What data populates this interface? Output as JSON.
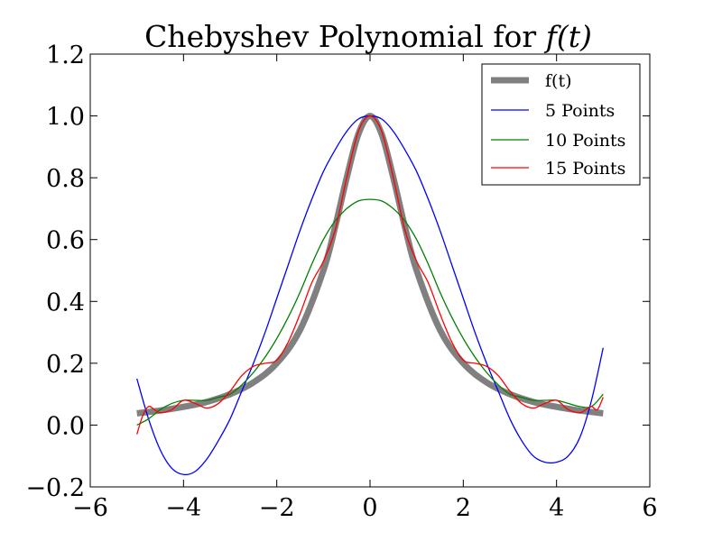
{
  "chart_data": {
    "type": "line",
    "title_main": "Chebyshev Polynomial for ",
    "title_math": "f(t)",
    "xlabel": "",
    "ylabel": "",
    "xlim": [
      -6,
      6
    ],
    "ylim": [
      -0.2,
      1.2
    ],
    "xticks": [
      -6,
      -4,
      -2,
      0,
      2,
      4,
      6
    ],
    "yticks": [
      -0.2,
      0.0,
      0.2,
      0.4,
      0.6,
      0.8,
      1.0,
      1.2
    ],
    "xtick_labels": [
      "−6",
      "−4",
      "−2",
      "0",
      "2",
      "4",
      "6"
    ],
    "ytick_labels": [
      "−0.2",
      "0.0",
      "0.2",
      "0.4",
      "0.6",
      "0.8",
      "1.0",
      "1.2"
    ],
    "grid": false,
    "legend_position": "top-right",
    "series": [
      {
        "name": "f(t)",
        "color": "#808080",
        "x": [
          -5,
          -4.5,
          -4,
          -3.5,
          -3,
          -2.5,
          -2,
          -1.5,
          -1,
          -0.75,
          -0.5,
          -0.25,
          0,
          0.25,
          0.5,
          0.75,
          1,
          1.5,
          2,
          2.5,
          3,
          3.5,
          4,
          4.5,
          5
        ],
        "y": [
          0.038,
          0.047,
          0.059,
          0.075,
          0.1,
          0.138,
          0.2,
          0.308,
          0.5,
          0.64,
          0.8,
          0.941,
          1.0,
          0.941,
          0.8,
          0.64,
          0.5,
          0.308,
          0.2,
          0.138,
          0.1,
          0.075,
          0.059,
          0.047,
          0.038
        ]
      },
      {
        "name": "5 Points",
        "color": "#0000ff",
        "x": [
          -5,
          -4.75,
          -4.5,
          -4.25,
          -4,
          -3.75,
          -3.5,
          -3.25,
          -3,
          -2.75,
          -2.5,
          -2.25,
          -2,
          -1.75,
          -1.5,
          -1.25,
          -1,
          -0.75,
          -0.5,
          -0.25,
          0,
          0.25,
          0.5,
          0.75,
          1,
          1.25,
          1.5,
          1.75,
          2,
          2.25,
          2.5,
          2.75,
          3,
          3.25,
          3.5,
          3.75,
          4,
          4.25,
          4.5,
          4.75,
          5
        ],
        "y": [
          0.15,
          0.02,
          -0.08,
          -0.14,
          -0.16,
          -0.15,
          -0.11,
          -0.05,
          0.02,
          0.11,
          0.2,
          0.3,
          0.41,
          0.52,
          0.63,
          0.73,
          0.82,
          0.89,
          0.95,
          0.99,
          1.0,
          0.99,
          0.95,
          0.89,
          0.82,
          0.73,
          0.63,
          0.52,
          0.41,
          0.3,
          0.2,
          0.11,
          0.02,
          -0.05,
          -0.1,
          -0.12,
          -0.12,
          -0.1,
          -0.04,
          0.08,
          0.25
        ]
      },
      {
        "name": "10 Points",
        "color": "#008000",
        "x": [
          -5,
          -4.75,
          -4.5,
          -4.25,
          -4,
          -3.75,
          -3.5,
          -3.25,
          -3,
          -2.75,
          -2.5,
          -2.25,
          -2,
          -1.75,
          -1.5,
          -1.25,
          -1,
          -0.75,
          -0.5,
          -0.25,
          0,
          0.25,
          0.5,
          0.75,
          1,
          1.25,
          1.5,
          1.75,
          2,
          2.25,
          2.5,
          2.75,
          3,
          3.25,
          3.5,
          3.75,
          4,
          4.25,
          4.5,
          4.75,
          5
        ],
        "y": [
          0.0,
          0.02,
          0.05,
          0.07,
          0.08,
          0.08,
          0.08,
          0.09,
          0.1,
          0.13,
          0.17,
          0.22,
          0.28,
          0.35,
          0.43,
          0.52,
          0.6,
          0.66,
          0.7,
          0.725,
          0.73,
          0.725,
          0.7,
          0.66,
          0.6,
          0.52,
          0.43,
          0.35,
          0.28,
          0.22,
          0.17,
          0.13,
          0.1,
          0.09,
          0.08,
          0.08,
          0.08,
          0.07,
          0.06,
          0.06,
          0.1
        ]
      },
      {
        "name": "15 Points",
        "color": "#ff0000",
        "x": [
          -5,
          -4.875,
          -4.75,
          -4.625,
          -4.5,
          -4.25,
          -4,
          -3.75,
          -3.5,
          -3.25,
          -3,
          -2.75,
          -2.5,
          -2.25,
          -2,
          -1.75,
          -1.5,
          -1.25,
          -1,
          -0.75,
          -0.5,
          -0.25,
          0,
          0.25,
          0.5,
          0.75,
          1,
          1.25,
          1.5,
          1.75,
          2,
          2.25,
          2.5,
          2.75,
          3,
          3.25,
          3.5,
          3.75,
          4,
          4.25,
          4.5,
          4.625,
          4.75,
          4.875,
          5
        ],
        "y": [
          -0.03,
          0.03,
          0.06,
          0.05,
          0.04,
          0.05,
          0.08,
          0.07,
          0.055,
          0.07,
          0.11,
          0.16,
          0.19,
          0.2,
          0.21,
          0.27,
          0.36,
          0.46,
          0.53,
          0.63,
          0.8,
          0.95,
          1.0,
          0.95,
          0.8,
          0.63,
          0.53,
          0.46,
          0.36,
          0.27,
          0.21,
          0.2,
          0.19,
          0.16,
          0.11,
          0.07,
          0.055,
          0.07,
          0.08,
          0.05,
          0.04,
          0.05,
          0.06,
          0.05,
          0.09
        ]
      }
    ]
  }
}
